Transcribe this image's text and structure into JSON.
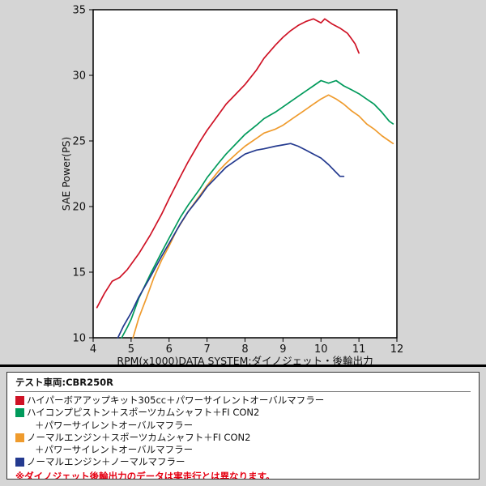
{
  "chart_data": {
    "type": "line",
    "title": "",
    "xlabel": "RPM(x1000)DATA SYSTEM:ダイノジェット・後輪出力",
    "ylabel": "SAE Power(PS)",
    "xlim": [
      4,
      12
    ],
    "ylim": [
      10,
      35
    ],
    "xticks": [
      4,
      5,
      6,
      7,
      8,
      9,
      10,
      11,
      12
    ],
    "yticks": [
      10,
      15,
      20,
      25,
      30,
      35
    ],
    "grid": false,
    "legend_position": "below",
    "series": [
      {
        "name": "ハイパーボアアップキット305cc＋パワーサイレントオーバルマフラー",
        "color": "#cf1225",
        "points": [
          [
            4.1,
            12.3
          ],
          [
            4.3,
            13.4
          ],
          [
            4.5,
            14.3
          ],
          [
            4.7,
            14.6
          ],
          [
            4.9,
            15.2
          ],
          [
            5.0,
            15.6
          ],
          [
            5.2,
            16.4
          ],
          [
            5.5,
            17.8
          ],
          [
            5.8,
            19.4
          ],
          [
            6.0,
            20.6
          ],
          [
            6.3,
            22.3
          ],
          [
            6.5,
            23.4
          ],
          [
            6.8,
            24.9
          ],
          [
            7.0,
            25.8
          ],
          [
            7.3,
            27.0
          ],
          [
            7.5,
            27.8
          ],
          [
            7.8,
            28.7
          ],
          [
            8.0,
            29.3
          ],
          [
            8.3,
            30.4
          ],
          [
            8.5,
            31.3
          ],
          [
            8.8,
            32.3
          ],
          [
            9.0,
            32.9
          ],
          [
            9.2,
            33.4
          ],
          [
            9.4,
            33.8
          ],
          [
            9.6,
            34.1
          ],
          [
            9.8,
            34.3
          ],
          [
            10.0,
            34.0
          ],
          [
            10.1,
            34.3
          ],
          [
            10.3,
            33.9
          ],
          [
            10.5,
            33.6
          ],
          [
            10.7,
            33.2
          ],
          [
            10.8,
            32.8
          ],
          [
            10.9,
            32.4
          ],
          [
            11.0,
            31.7
          ]
        ]
      },
      {
        "name": "ハイコンプピストン＋スポーツカムシャフト＋FI CON2＋パワーサイレントオーバルマフラー",
        "color": "#009a5b",
        "points": [
          [
            4.75,
            10.0
          ],
          [
            4.9,
            10.8
          ],
          [
            5.0,
            11.4
          ],
          [
            5.2,
            13.0
          ],
          [
            5.5,
            14.8
          ],
          [
            5.8,
            16.5
          ],
          [
            6.0,
            17.6
          ],
          [
            6.3,
            19.2
          ],
          [
            6.5,
            20.1
          ],
          [
            6.8,
            21.3
          ],
          [
            7.0,
            22.2
          ],
          [
            7.3,
            23.3
          ],
          [
            7.5,
            24.0
          ],
          [
            7.8,
            24.9
          ],
          [
            8.0,
            25.5
          ],
          [
            8.3,
            26.2
          ],
          [
            8.5,
            26.7
          ],
          [
            8.8,
            27.2
          ],
          [
            9.0,
            27.6
          ],
          [
            9.3,
            28.2
          ],
          [
            9.5,
            28.6
          ],
          [
            9.8,
            29.2
          ],
          [
            10.0,
            29.6
          ],
          [
            10.2,
            29.4
          ],
          [
            10.4,
            29.6
          ],
          [
            10.6,
            29.2
          ],
          [
            10.8,
            28.9
          ],
          [
            11.0,
            28.6
          ],
          [
            11.2,
            28.2
          ],
          [
            11.4,
            27.8
          ],
          [
            11.6,
            27.2
          ],
          [
            11.8,
            26.5
          ],
          [
            11.9,
            26.3
          ]
        ]
      },
      {
        "name": "ノーマルエンジン＋スポーツカムシャフト＋FI CON2＋パワーサイレントオーバルマフラー",
        "color": "#ef9b2d",
        "points": [
          [
            5.05,
            10.0
          ],
          [
            5.2,
            11.5
          ],
          [
            5.4,
            13.0
          ],
          [
            5.6,
            14.6
          ],
          [
            5.8,
            15.9
          ],
          [
            6.0,
            17.0
          ],
          [
            6.2,
            18.2
          ],
          [
            6.5,
            19.6
          ],
          [
            6.8,
            20.8
          ],
          [
            7.0,
            21.6
          ],
          [
            7.3,
            22.7
          ],
          [
            7.5,
            23.3
          ],
          [
            7.8,
            24.1
          ],
          [
            8.0,
            24.6
          ],
          [
            8.3,
            25.2
          ],
          [
            8.5,
            25.6
          ],
          [
            8.8,
            25.9
          ],
          [
            9.0,
            26.2
          ],
          [
            9.3,
            26.8
          ],
          [
            9.5,
            27.2
          ],
          [
            9.8,
            27.8
          ],
          [
            10.0,
            28.2
          ],
          [
            10.2,
            28.5
          ],
          [
            10.4,
            28.2
          ],
          [
            10.6,
            27.8
          ],
          [
            10.8,
            27.3
          ],
          [
            11.0,
            26.9
          ],
          [
            11.2,
            26.3
          ],
          [
            11.4,
            25.9
          ],
          [
            11.6,
            25.4
          ],
          [
            11.8,
            25.0
          ],
          [
            11.9,
            24.8
          ]
        ]
      },
      {
        "name": "ノーマルエンジン＋ノーマルマフラー",
        "color": "#243a8f",
        "points": [
          [
            4.65,
            10.0
          ],
          [
            4.8,
            10.9
          ],
          [
            5.0,
            11.9
          ],
          [
            5.2,
            13.1
          ],
          [
            5.5,
            14.6
          ],
          [
            5.8,
            16.2
          ],
          [
            6.0,
            17.2
          ],
          [
            6.3,
            18.7
          ],
          [
            6.5,
            19.6
          ],
          [
            6.8,
            20.7
          ],
          [
            7.0,
            21.5
          ],
          [
            7.3,
            22.4
          ],
          [
            7.5,
            23.0
          ],
          [
            7.8,
            23.6
          ],
          [
            8.0,
            24.0
          ],
          [
            8.3,
            24.3
          ],
          [
            8.5,
            24.4
          ],
          [
            8.8,
            24.6
          ],
          [
            9.0,
            24.7
          ],
          [
            9.2,
            24.8
          ],
          [
            9.4,
            24.6
          ],
          [
            9.6,
            24.3
          ],
          [
            9.8,
            24.0
          ],
          [
            10.0,
            23.7
          ],
          [
            10.2,
            23.2
          ],
          [
            10.4,
            22.6
          ],
          [
            10.5,
            22.3
          ],
          [
            10.6,
            22.3
          ]
        ]
      }
    ]
  },
  "legend": {
    "test_vehicle": "テスト車両:CBR250R",
    "items": [
      {
        "color": "#cf1225",
        "lines": [
          "ハイパーボアアップキット305cc＋パワーサイレントオーバルマフラー"
        ]
      },
      {
        "color": "#009a5b",
        "lines": [
          "ハイコンプピストン＋スポーツカムシャフト＋FI CON2",
          "＋パワーサイレントオーバルマフラー"
        ]
      },
      {
        "color": "#ef9b2d",
        "lines": [
          "ノーマルエンジン＋スポーツカムシャフト＋FI CON2",
          "＋パワーサイレントオーバルマフラー"
        ]
      },
      {
        "color": "#243a8f",
        "lines": [
          "ノーマルエンジン＋ノーマルマフラー"
        ]
      }
    ],
    "note": "※ダイノジェット後輪出力のデータは実走行とは異なります。",
    "note_color": "#e60012"
  }
}
